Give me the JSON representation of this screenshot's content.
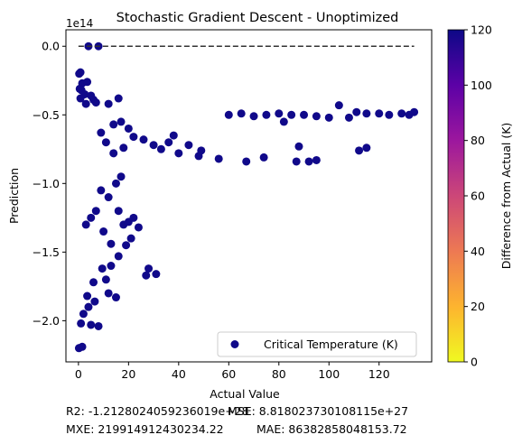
{
  "chart_data": {
    "type": "scatter",
    "title": "Stochastic Gradient Descent - Unoptimized",
    "xlabel": "Actual Value",
    "ylabel": "Prediction",
    "y_offset_text": "1e14",
    "xlim": [
      -5,
      141
    ],
    "ylim": [
      -2.3,
      0.12
    ],
    "y_units_scale": "1e14",
    "xticks": [
      0,
      20,
      40,
      60,
      80,
      100,
      120
    ],
    "yticks": [
      0.0,
      -0.5,
      -1.0,
      -1.5,
      -2.0
    ],
    "ytick_labels": [
      "0.0",
      "−0.5",
      "−1.0",
      "−1.5",
      "−2.0"
    ],
    "grid": false,
    "legend": {
      "placement": "lower-right",
      "entries": [
        "Critical Temperature (K)"
      ]
    },
    "reference_line": {
      "style": "dashed",
      "color": "#333333",
      "x": [
        0,
        134
      ],
      "y": [
        0.0,
        0.0
      ]
    },
    "colorbar": {
      "label": "Difference from Actual (K)",
      "range": [
        0,
        120
      ],
      "ticks": [
        0,
        20,
        40,
        60,
        80,
        100,
        120
      ],
      "colormap": "plasma_r",
      "colors": [
        "#f0f921",
        "#fdb42f",
        "#ed7953",
        "#cc4778",
        "#9c179e",
        "#5c01a6",
        "#0d0887"
      ]
    },
    "marker_color": "#10098a",
    "series": [
      {
        "name": "Critical Temperature (K)",
        "points": [
          [
            4,
            0.0
          ],
          [
            8,
            0.0
          ],
          [
            0.3,
            -0.2
          ],
          [
            0.8,
            -0.19
          ],
          [
            1.5,
            -0.27
          ],
          [
            3.5,
            -0.26
          ],
          [
            0.5,
            -0.31
          ],
          [
            1.2,
            -0.32
          ],
          [
            2.5,
            -0.35
          ],
          [
            5.0,
            -0.36
          ],
          [
            0.8,
            -0.38
          ],
          [
            16,
            -0.38
          ],
          [
            6,
            -0.39
          ],
          [
            12,
            -0.42
          ],
          [
            3,
            -0.42
          ],
          [
            7,
            -0.41
          ],
          [
            60,
            -0.5
          ],
          [
            65,
            -0.49
          ],
          [
            70,
            -0.51
          ],
          [
            75,
            -0.5
          ],
          [
            80,
            -0.49
          ],
          [
            85,
            -0.5
          ],
          [
            90,
            -0.5
          ],
          [
            95,
            -0.51
          ],
          [
            100,
            -0.52
          ],
          [
            104,
            -0.43
          ],
          [
            108,
            -0.52
          ],
          [
            111,
            -0.48
          ],
          [
            115,
            -0.49
          ],
          [
            120,
            -0.49
          ],
          [
            124,
            -0.5
          ],
          [
            129,
            -0.49
          ],
          [
            132,
            -0.5
          ],
          [
            134,
            -0.48
          ],
          [
            67,
            -0.84
          ],
          [
            74,
            -0.81
          ],
          [
            82,
            -0.55
          ],
          [
            87,
            -0.84
          ],
          [
            88,
            -0.73
          ],
          [
            92,
            -0.84
          ],
          [
            95,
            -0.83
          ],
          [
            112,
            -0.76
          ],
          [
            115,
            -0.74
          ],
          [
            38,
            -0.65
          ],
          [
            49,
            -0.76
          ],
          [
            56,
            -0.82
          ],
          [
            24,
            -1.32
          ],
          [
            28,
            -1.62
          ],
          [
            31,
            -1.66
          ],
          [
            27,
            -1.67
          ],
          [
            0.2,
            -2.2
          ],
          [
            1.5,
            -2.19
          ],
          [
            5,
            -2.03
          ],
          [
            8,
            -2.04
          ],
          [
            12,
            -1.8
          ],
          [
            15,
            -1.83
          ],
          [
            3.5,
            -1.82
          ],
          [
            6.5,
            -1.86
          ],
          [
            9.5,
            -1.62
          ],
          [
            13,
            -1.6
          ],
          [
            19,
            -1.45
          ],
          [
            21,
            -1.4
          ],
          [
            18,
            -1.3
          ],
          [
            20,
            -1.28
          ],
          [
            22,
            -1.25
          ],
          [
            16,
            -1.2
          ],
          [
            10,
            -1.35
          ],
          [
            13,
            -1.44
          ],
          [
            16,
            -1.53
          ],
          [
            6,
            -1.72
          ],
          [
            11,
            -1.7
          ],
          [
            2,
            -1.95
          ],
          [
            4,
            -1.9
          ],
          [
            1,
            -2.02
          ],
          [
            30,
            -0.72
          ],
          [
            33,
            -0.75
          ],
          [
            36,
            -0.7
          ],
          [
            40,
            -0.78
          ],
          [
            44,
            -0.72
          ],
          [
            48,
            -0.8
          ],
          [
            26,
            -0.68
          ],
          [
            22,
            -0.66
          ],
          [
            18,
            -0.74
          ],
          [
            14,
            -0.78
          ],
          [
            9,
            -0.63
          ],
          [
            11,
            -0.7
          ],
          [
            9,
            -1.05
          ],
          [
            12,
            -1.1
          ],
          [
            15,
            -1.0
          ],
          [
            17,
            -0.95
          ],
          [
            7,
            -1.2
          ],
          [
            5,
            -1.25
          ],
          [
            3,
            -1.3
          ],
          [
            14,
            -0.57
          ],
          [
            17,
            -0.55
          ],
          [
            20,
            -0.6
          ]
        ]
      }
    ]
  },
  "metrics": {
    "r2": "R2: -1.2128024059236019e+28",
    "mse": "MSE: 8.818023730108115e+27",
    "mxe": "MXE: 219914912430234.22",
    "mae": "MAE: 86382858048153.72"
  }
}
